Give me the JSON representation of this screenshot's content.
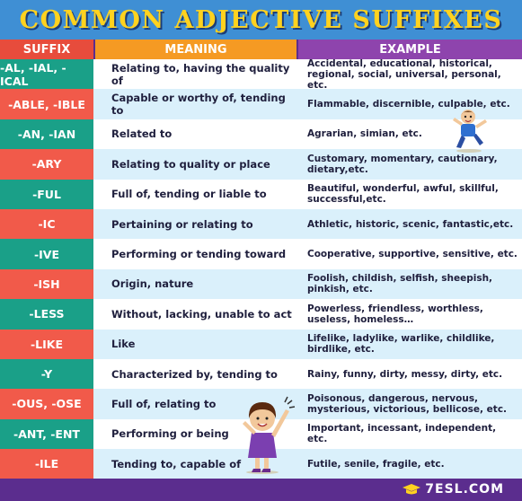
{
  "title": "COMMON ADJECTIVE SUFFIXES",
  "header": {
    "suffix": "SUFFIX",
    "meaning": "MEANING",
    "example": "EXAMPLE"
  },
  "rows": [
    {
      "suffix": "-AL, -IAL, -ICAL",
      "meaning": "Relating to, having the quality of",
      "example": "Accidental, educational, historical, regional, social, universal, personal, etc."
    },
    {
      "suffix": "-ABLE, -IBLE",
      "meaning": "Capable or worthy of, tending to",
      "example": "Flammable, discernible, culpable, etc."
    },
    {
      "suffix": "-AN, -IAN",
      "meaning": "Related to",
      "example": "Agrarian, simian, etc."
    },
    {
      "suffix": "-ARY",
      "meaning": "Relating to quality or place",
      "example": "Customary, momentary, cautionary, dietary,etc."
    },
    {
      "suffix": "-FUL",
      "meaning": "Full of, tending or liable to",
      "example": "Beautiful, wonderful, awful, skillful, successful,etc."
    },
    {
      "suffix": "-IC",
      "meaning": "Pertaining or relating to",
      "example": "Athletic, historic, scenic, fantastic,etc."
    },
    {
      "suffix": "-IVE",
      "meaning": "Performing or tending toward",
      "example": "Cooperative, supportive, sensitive, etc."
    },
    {
      "suffix": "-ISH",
      "meaning": "Origin, nature",
      "example": "Foolish, childish, selfish, sheepish, pinkish, etc."
    },
    {
      "suffix": "-LESS",
      "meaning": "Without, lacking, unable to act",
      "example": "Powerless, friendless, worthless, useless, homeless…"
    },
    {
      "suffix": "-LIKE",
      "meaning": "Like",
      "example": "Lifelike, ladylike, warlike, childlike, birdlike, etc."
    },
    {
      "suffix": "-Y",
      "meaning": "Characterized by, tending to",
      "example": "Rainy, funny, dirty, messy, dirty, etc."
    },
    {
      "suffix": "-OUS, -OSE",
      "meaning": "Full of, relating to",
      "example": "Poisonous, dangerous, nervous, mysterious, victorious, bellicose, etc."
    },
    {
      "suffix": "-ANT, -ENT",
      "meaning": "Performing or being",
      "example": "Important, incessant, independent, etc."
    },
    {
      "suffix": "-ILE",
      "meaning": "Tending to, capable of",
      "example": "Futile, senile, fragile, etc."
    }
  ],
  "footer": {
    "logo_text": "7ESL.COM",
    "logo_icon": "graduation-cap-icon"
  },
  "colors": {
    "title_bg": "#3f8fd4",
    "title_text": "#ffd21f",
    "suffix_header": "#e74c3c",
    "meaning_header": "#f59a23",
    "example_header": "#8e44ad",
    "suffix_teal": "#1aa088",
    "suffix_red": "#f15a4a",
    "row_white": "#ffffff",
    "row_blue": "#daf0fb",
    "footer_bg": "#5b2d8e"
  }
}
